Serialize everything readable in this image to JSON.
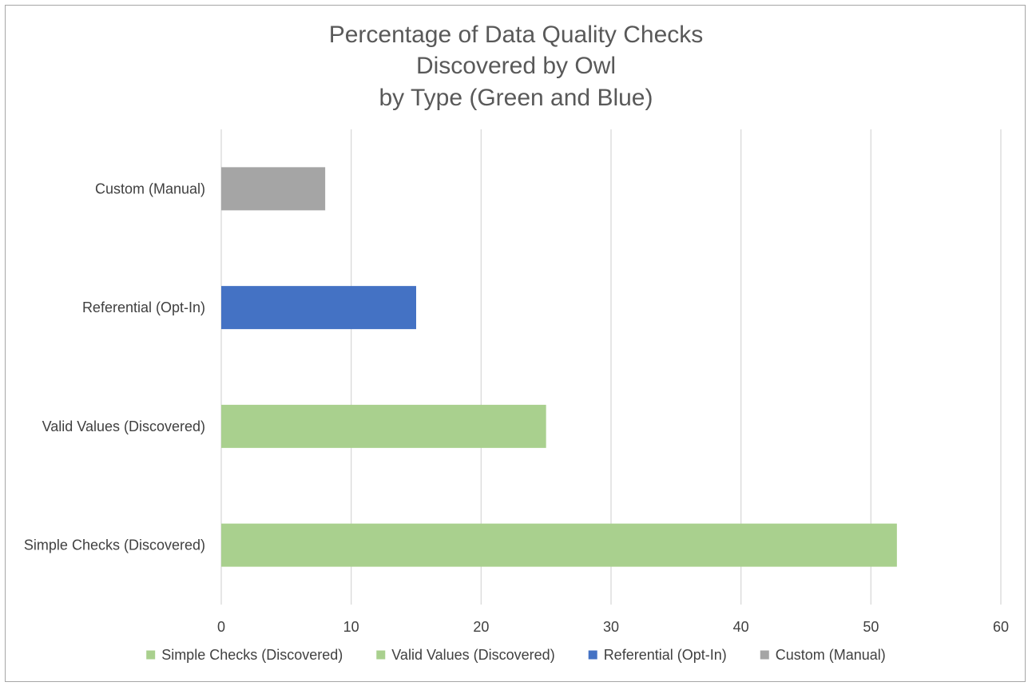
{
  "chart_data": {
    "type": "bar",
    "orientation": "horizontal",
    "title": "Percentage of Data Quality Checks Discovered by Owl by Type (Green and Blue)",
    "title_lines": [
      "Percentage of Data Quality Checks",
      "Discovered by Owl",
      "by Type (Green and Blue)"
    ],
    "xlabel": "",
    "ylabel": "",
    "xlim": [
      0,
      60
    ],
    "x_ticks": [
      0,
      10,
      20,
      30,
      40,
      50,
      60
    ],
    "grid": true,
    "legend_position": "bottom",
    "categories": [
      "Simple Checks (Discovered)",
      "Valid Values (Discovered)",
      "Referential (Opt-In)",
      "Custom (Manual)"
    ],
    "values": [
      52,
      25,
      15,
      8
    ],
    "colors": [
      "#a9d08e",
      "#a9d08e",
      "#4472c4",
      "#a5a5a5"
    ],
    "legend": [
      {
        "label": "Simple Checks (Discovered)",
        "color": "#a9d08e"
      },
      {
        "label": "Valid Values (Discovered)",
        "color": "#a9d08e"
      },
      {
        "label": "Referential (Opt-In)",
        "color": "#4472c4"
      },
      {
        "label": "Custom (Manual)",
        "color": "#a5a5a5"
      }
    ]
  }
}
